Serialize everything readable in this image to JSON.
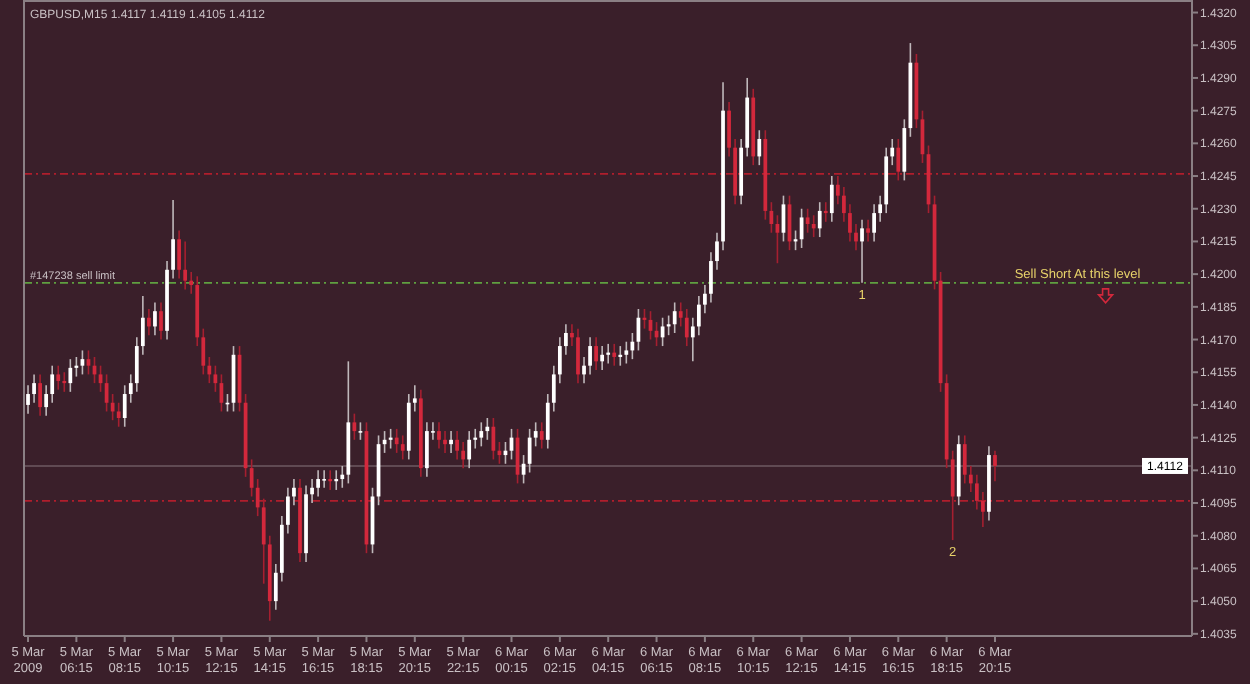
{
  "chart_data": {
    "type": "candlestick",
    "title": "GBPUSD,M15  1.4117 1.4119 1.4105 1.4112",
    "x": [
      "2009-03-05T04:15",
      "2009-03-05T04:30",
      "2009-03-05T04:45",
      "2009-03-05T05:00",
      "2009-03-05T05:15",
      "2009-03-05T05:30",
      "2009-03-05T05:45",
      "2009-03-05T06:00",
      "2009-03-05T06:15",
      "2009-03-05T06:30",
      "2009-03-05T06:45",
      "2009-03-05T07:00",
      "2009-03-05T07:15",
      "2009-03-05T07:30",
      "2009-03-05T07:45",
      "2009-03-05T08:00",
      "2009-03-05T08:15",
      "2009-03-05T08:30",
      "2009-03-05T08:45",
      "2009-03-05T09:00",
      "2009-03-05T09:15",
      "2009-03-05T09:30",
      "2009-03-05T09:45",
      "2009-03-05T10:00",
      "2009-03-05T10:15",
      "2009-03-05T10:30",
      "2009-03-05T10:45",
      "2009-03-05T11:00",
      "2009-03-05T11:15",
      "2009-03-05T11:30",
      "2009-03-05T11:45",
      "2009-03-05T12:00",
      "2009-03-05T12:15",
      "2009-03-05T12:30",
      "2009-03-05T12:45",
      "2009-03-05T13:00",
      "2009-03-05T13:15",
      "2009-03-05T13:30",
      "2009-03-05T13:45",
      "2009-03-05T14:00",
      "2009-03-05T14:15",
      "2009-03-05T14:30",
      "2009-03-05T14:45",
      "2009-03-05T15:00",
      "2009-03-05T15:15",
      "2009-03-05T15:30",
      "2009-03-05T15:45",
      "2009-03-05T16:00",
      "2009-03-05T16:15",
      "2009-03-05T16:30",
      "2009-03-05T16:45",
      "2009-03-05T17:00",
      "2009-03-05T17:15",
      "2009-03-05T17:30",
      "2009-03-05T17:45",
      "2009-03-05T18:00",
      "2009-03-05T18:15",
      "2009-03-05T18:30",
      "2009-03-05T18:45",
      "2009-03-05T19:00",
      "2009-03-05T19:15",
      "2009-03-05T19:30",
      "2009-03-05T19:45",
      "2009-03-05T20:00",
      "2009-03-05T20:15",
      "2009-03-05T20:30",
      "2009-03-05T20:45",
      "2009-03-05T21:00",
      "2009-03-05T21:15",
      "2009-03-05T21:30",
      "2009-03-05T21:45",
      "2009-03-05T22:00",
      "2009-03-05T22:15",
      "2009-03-05T22:30",
      "2009-03-05T22:45",
      "2009-03-05T23:00",
      "2009-03-05T23:15",
      "2009-03-05T23:30",
      "2009-03-05T23:45",
      "2009-03-06T00:00",
      "2009-03-06T00:15",
      "2009-03-06T00:30",
      "2009-03-06T00:45",
      "2009-03-06T01:00",
      "2009-03-06T01:15",
      "2009-03-06T01:30",
      "2009-03-06T01:45",
      "2009-03-06T02:00",
      "2009-03-06T02:15",
      "2009-03-06T02:30",
      "2009-03-06T02:45",
      "2009-03-06T03:00",
      "2009-03-06T03:15",
      "2009-03-06T03:30",
      "2009-03-06T03:45",
      "2009-03-06T04:00",
      "2009-03-06T04:15",
      "2009-03-06T04:30",
      "2009-03-06T04:45",
      "2009-03-06T05:00",
      "2009-03-06T05:15",
      "2009-03-06T05:30",
      "2009-03-06T05:45",
      "2009-03-06T06:00",
      "2009-03-06T06:15",
      "2009-03-06T06:30",
      "2009-03-06T06:45",
      "2009-03-06T07:00",
      "2009-03-06T07:15",
      "2009-03-06T07:30",
      "2009-03-06T07:45",
      "2009-03-06T08:00",
      "2009-03-06T08:15",
      "2009-03-06T08:30",
      "2009-03-06T08:45",
      "2009-03-06T09:00",
      "2009-03-06T09:15",
      "2009-03-06T09:30",
      "2009-03-06T09:45",
      "2009-03-06T10:00",
      "2009-03-06T10:15",
      "2009-03-06T10:30",
      "2009-03-06T10:45",
      "2009-03-06T11:00",
      "2009-03-06T11:15",
      "2009-03-06T11:30",
      "2009-03-06T11:45",
      "2009-03-06T12:00",
      "2009-03-06T12:15",
      "2009-03-06T12:30",
      "2009-03-06T12:45",
      "2009-03-06T13:00",
      "2009-03-06T13:15",
      "2009-03-06T13:30",
      "2009-03-06T13:45",
      "2009-03-06T14:00",
      "2009-03-06T14:15",
      "2009-03-06T14:30",
      "2009-03-06T14:45",
      "2009-03-06T15:00",
      "2009-03-06T15:15",
      "2009-03-06T15:30",
      "2009-03-06T15:45",
      "2009-03-06T16:00",
      "2009-03-06T16:15",
      "2009-03-06T16:30",
      "2009-03-06T16:45",
      "2009-03-06T17:00",
      "2009-03-06T17:15",
      "2009-03-06T17:30",
      "2009-03-06T17:45",
      "2009-03-06T18:00",
      "2009-03-06T18:15",
      "2009-03-06T18:30",
      "2009-03-06T18:45",
      "2009-03-06T19:00",
      "2009-03-06T19:15",
      "2009-03-06T19:30",
      "2009-03-06T19:45",
      "2009-03-06T20:00",
      "2009-03-06T20:15"
    ],
    "ohlc": [
      [
        1.414,
        1.4149,
        1.4136,
        1.4145
      ],
      [
        1.4145,
        1.4154,
        1.4141,
        1.415
      ],
      [
        1.415,
        1.4154,
        1.4135,
        1.4139
      ],
      [
        1.4139,
        1.4149,
        1.4135,
        1.4145
      ],
      [
        1.4145,
        1.4158,
        1.4141,
        1.4154
      ],
      [
        1.4154,
        1.4158,
        1.4147,
        1.4151
      ],
      [
        1.4151,
        1.4155,
        1.4146,
        1.415
      ],
      [
        1.415,
        1.4161,
        1.4146,
        1.4157
      ],
      [
        1.4157,
        1.4162,
        1.4153,
        1.4158
      ],
      [
        1.4158,
        1.4165,
        1.4154,
        1.4161
      ],
      [
        1.4161,
        1.4165,
        1.4154,
        1.4158
      ],
      [
        1.4158,
        1.4162,
        1.415,
        1.4154
      ],
      [
        1.4154,
        1.4158,
        1.4146,
        1.415
      ],
      [
        1.415,
        1.4154,
        1.4137,
        1.4141
      ],
      [
        1.4141,
        1.4145,
        1.4133,
        1.4137
      ],
      [
        1.4137,
        1.4141,
        1.413,
        1.4134
      ],
      [
        1.4134,
        1.4149,
        1.413,
        1.4145
      ],
      [
        1.4145,
        1.4154,
        1.4141,
        1.415
      ],
      [
        1.415,
        1.4171,
        1.4146,
        1.4167
      ],
      [
        1.4167,
        1.419,
        1.4163,
        1.418
      ],
      [
        1.418,
        1.4184,
        1.4172,
        1.4176
      ],
      [
        1.4176,
        1.4187,
        1.4172,
        1.4183
      ],
      [
        1.4183,
        1.4187,
        1.417,
        1.4174
      ],
      [
        1.4174,
        1.4206,
        1.417,
        1.4202
      ],
      [
        1.4202,
        1.4234,
        1.4198,
        1.4216
      ],
      [
        1.4216,
        1.422,
        1.4198,
        1.4202
      ],
      [
        1.4202,
        1.4215,
        1.4193,
        1.4197
      ],
      [
        1.4197,
        1.4201,
        1.4191,
        1.4195
      ],
      [
        1.4195,
        1.4199,
        1.4167,
        1.4171
      ],
      [
        1.4171,
        1.4175,
        1.4154,
        1.4158
      ],
      [
        1.4158,
        1.4162,
        1.415,
        1.4154
      ],
      [
        1.4154,
        1.4158,
        1.4146,
        1.415
      ],
      [
        1.415,
        1.4154,
        1.4137,
        1.4141
      ],
      [
        1.4141,
        1.4145,
        1.4137,
        1.4141
      ],
      [
        1.4141,
        1.4167,
        1.4137,
        1.4163
      ],
      [
        1.4163,
        1.4167,
        1.4137,
        1.4141
      ],
      [
        1.4141,
        1.4145,
        1.4107,
        1.4111
      ],
      [
        1.4111,
        1.4115,
        1.4098,
        1.4102
      ],
      [
        1.4102,
        1.4106,
        1.4089,
        1.4093
      ],
      [
        1.4093,
        1.4097,
        1.4058,
        1.4076
      ],
      [
        1.4076,
        1.408,
        1.4041,
        1.405
      ],
      [
        1.405,
        1.4067,
        1.4046,
        1.4063
      ],
      [
        1.4063,
        1.4089,
        1.4059,
        1.4085
      ],
      [
        1.4085,
        1.4102,
        1.4081,
        1.4098
      ],
      [
        1.4098,
        1.4106,
        1.4094,
        1.4102
      ],
      [
        1.4102,
        1.4106,
        1.4068,
        1.4072
      ],
      [
        1.4072,
        1.4103,
        1.4068,
        1.4099
      ],
      [
        1.4099,
        1.4106,
        1.4095,
        1.4102
      ],
      [
        1.4102,
        1.411,
        1.4098,
        1.4106
      ],
      [
        1.4106,
        1.411,
        1.4102,
        1.4106
      ],
      [
        1.4106,
        1.411,
        1.4101,
        1.4105
      ],
      [
        1.4105,
        1.411,
        1.4101,
        1.4106
      ],
      [
        1.4106,
        1.4112,
        1.4102,
        1.4108
      ],
      [
        1.4108,
        1.416,
        1.4104,
        1.4132
      ],
      [
        1.4132,
        1.4136,
        1.4124,
        1.4128
      ],
      [
        1.4128,
        1.4132,
        1.4124,
        1.4128
      ],
      [
        1.4128,
        1.4132,
        1.4072,
        1.4076
      ],
      [
        1.4076,
        1.4102,
        1.4072,
        1.4098
      ],
      [
        1.4098,
        1.4126,
        1.4094,
        1.4122
      ],
      [
        1.4122,
        1.4128,
        1.4118,
        1.4124
      ],
      [
        1.4124,
        1.4129,
        1.412,
        1.4125
      ],
      [
        1.4125,
        1.4129,
        1.4118,
        1.4122
      ],
      [
        1.4122,
        1.4126,
        1.4115,
        1.4119
      ],
      [
        1.4119,
        1.4145,
        1.4115,
        1.4141
      ],
      [
        1.4141,
        1.4149,
        1.4137,
        1.4143
      ],
      [
        1.4143,
        1.4147,
        1.4107,
        1.4111
      ],
      [
        1.4111,
        1.4132,
        1.4107,
        1.4128
      ],
      [
        1.4128,
        1.4132,
        1.4124,
        1.4128
      ],
      [
        1.4128,
        1.4132,
        1.412,
        1.4124
      ],
      [
        1.4124,
        1.4128,
        1.4118,
        1.4122
      ],
      [
        1.4122,
        1.4128,
        1.4118,
        1.4124
      ],
      [
        1.4124,
        1.4128,
        1.4115,
        1.4119
      ],
      [
        1.4119,
        1.4123,
        1.4111,
        1.4115
      ],
      [
        1.4115,
        1.4128,
        1.4111,
        1.4124
      ],
      [
        1.4124,
        1.4129,
        1.412,
        1.4125
      ],
      [
        1.4125,
        1.4132,
        1.4121,
        1.4128
      ],
      [
        1.4128,
        1.4134,
        1.4124,
        1.413
      ],
      [
        1.413,
        1.4134,
        1.4115,
        1.4119
      ],
      [
        1.4119,
        1.4123,
        1.4113,
        1.4117
      ],
      [
        1.4117,
        1.4123,
        1.4113,
        1.4119
      ],
      [
        1.4119,
        1.4129,
        1.4115,
        1.4125
      ],
      [
        1.4125,
        1.4129,
        1.4104,
        1.4108
      ],
      [
        1.4108,
        1.4117,
        1.4104,
        1.4113
      ],
      [
        1.4113,
        1.4129,
        1.4109,
        1.4125
      ],
      [
        1.4125,
        1.4132,
        1.4121,
        1.4128
      ],
      [
        1.4128,
        1.4132,
        1.412,
        1.4124
      ],
      [
        1.4124,
        1.4145,
        1.412,
        1.4141
      ],
      [
        1.4141,
        1.4158,
        1.4137,
        1.4154
      ],
      [
        1.4154,
        1.4171,
        1.415,
        1.4167
      ],
      [
        1.4167,
        1.4177,
        1.4163,
        1.4173
      ],
      [
        1.4173,
        1.4177,
        1.4167,
        1.4171
      ],
      [
        1.4171,
        1.4175,
        1.415,
        1.4154
      ],
      [
        1.4154,
        1.4162,
        1.415,
        1.4158
      ],
      [
        1.4158,
        1.4171,
        1.4154,
        1.4167
      ],
      [
        1.4167,
        1.4171,
        1.4156,
        1.416
      ],
      [
        1.416,
        1.4167,
        1.4156,
        1.4163
      ],
      [
        1.4163,
        1.4168,
        1.4159,
        1.4164
      ],
      [
        1.4164,
        1.4168,
        1.4158,
        1.4162
      ],
      [
        1.4162,
        1.4167,
        1.4158,
        1.4163
      ],
      [
        1.4163,
        1.4169,
        1.4159,
        1.4165
      ],
      [
        1.4165,
        1.4173,
        1.4161,
        1.4169
      ],
      [
        1.4169,
        1.4184,
        1.4165,
        1.418
      ],
      [
        1.418,
        1.4184,
        1.4175,
        1.4179
      ],
      [
        1.4179,
        1.4183,
        1.417,
        1.4174
      ],
      [
        1.4174,
        1.4178,
        1.4167,
        1.4171
      ],
      [
        1.4171,
        1.418,
        1.4167,
        1.4176
      ],
      [
        1.4176,
        1.4181,
        1.4172,
        1.4177
      ],
      [
        1.4177,
        1.4187,
        1.4173,
        1.4183
      ],
      [
        1.4183,
        1.4187,
        1.4176,
        1.418
      ],
      [
        1.418,
        1.4184,
        1.4167,
        1.4171
      ],
      [
        1.4171,
        1.418,
        1.416,
        1.4176
      ],
      [
        1.4176,
        1.419,
        1.4172,
        1.4186
      ],
      [
        1.4186,
        1.4195,
        1.4182,
        1.4191
      ],
      [
        1.4191,
        1.421,
        1.4187,
        1.4206
      ],
      [
        1.4206,
        1.4219,
        1.4202,
        1.4215
      ],
      [
        1.4215,
        1.4288,
        1.4211,
        1.4275
      ],
      [
        1.4275,
        1.4279,
        1.4254,
        1.4258
      ],
      [
        1.4258,
        1.4262,
        1.4232,
        1.4236
      ],
      [
        1.4236,
        1.4262,
        1.4232,
        1.4258
      ],
      [
        1.4258,
        1.429,
        1.4254,
        1.4281
      ],
      [
        1.4281,
        1.4285,
        1.425,
        1.4254
      ],
      [
        1.4254,
        1.4266,
        1.425,
        1.4262
      ],
      [
        1.4262,
        1.4266,
        1.4225,
        1.4229
      ],
      [
        1.4229,
        1.4233,
        1.4219,
        1.4223
      ],
      [
        1.4223,
        1.4227,
        1.4205,
        1.4219
      ],
      [
        1.4219,
        1.4236,
        1.4215,
        1.4232
      ],
      [
        1.4232,
        1.4236,
        1.4211,
        1.4215
      ],
      [
        1.4215,
        1.422,
        1.4211,
        1.4216
      ],
      [
        1.4216,
        1.423,
        1.4212,
        1.4226
      ],
      [
        1.4226,
        1.423,
        1.4219,
        1.4223
      ],
      [
        1.4223,
        1.4227,
        1.4217,
        1.4221
      ],
      [
        1.4221,
        1.4233,
        1.4217,
        1.4229
      ],
      [
        1.4229,
        1.4233,
        1.4224,
        1.4228
      ],
      [
        1.4228,
        1.4245,
        1.4224,
        1.4241
      ],
      [
        1.4241,
        1.4245,
        1.4232,
        1.4236
      ],
      [
        1.4236,
        1.424,
        1.4224,
        1.4228
      ],
      [
        1.4228,
        1.4232,
        1.4215,
        1.4219
      ],
      [
        1.4219,
        1.4223,
        1.4211,
        1.4215
      ],
      [
        1.4215,
        1.4225,
        1.4196,
        1.4221
      ],
      [
        1.4221,
        1.4225,
        1.4215,
        1.4219
      ],
      [
        1.4219,
        1.4232,
        1.4215,
        1.4228
      ],
      [
        1.4228,
        1.4236,
        1.4224,
        1.4232
      ],
      [
        1.4232,
        1.4258,
        1.4228,
        1.4254
      ],
      [
        1.4254,
        1.4262,
        1.425,
        1.4258
      ],
      [
        1.4258,
        1.4262,
        1.4243,
        1.4247
      ],
      [
        1.4247,
        1.4271,
        1.4243,
        1.4267
      ],
      [
        1.4267,
        1.4306,
        1.4263,
        1.4297
      ],
      [
        1.4297,
        1.4301,
        1.4267,
        1.4271
      ],
      [
        1.4271,
        1.4275,
        1.4251,
        1.4255
      ],
      [
        1.4255,
        1.4259,
        1.4228,
        1.4232
      ],
      [
        1.4232,
        1.4236,
        1.4193,
        1.4197
      ],
      [
        1.4197,
        1.4201,
        1.4146,
        1.415
      ],
      [
        1.415,
        1.4154,
        1.4111,
        1.4115
      ],
      [
        1.4115,
        1.4119,
        1.4078,
        1.4098
      ],
      [
        1.4098,
        1.4126,
        1.4094,
        1.4122
      ],
      [
        1.4122,
        1.4126,
        1.4104,
        1.4108
      ],
      [
        1.4108,
        1.4112,
        1.41,
        1.4104
      ],
      [
        1.4104,
        1.4108,
        1.4092,
        1.4096
      ],
      [
        1.4096,
        1.41,
        1.4084,
        1.4091
      ],
      [
        1.4091,
        1.4121,
        1.4087,
        1.4117
      ],
      [
        1.4117,
        1.4119,
        1.4105,
        1.4112
      ]
    ],
    "xlim": [
      "2009-03-05T04:05",
      "2009-03-07T04:24"
    ],
    "xticks": [
      {
        "value": "2009-03-05T04:15",
        "label": "5 Mar 2009"
      },
      {
        "value": "2009-03-05T06:15",
        "label": "5 Mar 06:15"
      },
      {
        "value": "2009-03-05T08:15",
        "label": "5 Mar 08:15"
      },
      {
        "value": "2009-03-05T10:15",
        "label": "5 Mar 10:15"
      },
      {
        "value": "2009-03-05T12:15",
        "label": "5 Mar 12:15"
      },
      {
        "value": "2009-03-05T14:15",
        "label": "5 Mar 14:15"
      },
      {
        "value": "2009-03-05T16:15",
        "label": "5 Mar 16:15"
      },
      {
        "value": "2009-03-05T18:15",
        "label": "5 Mar 18:15"
      },
      {
        "value": "2009-03-05T20:15",
        "label": "5 Mar 20:15"
      },
      {
        "value": "2009-03-05T22:15",
        "label": "5 Mar 22:15"
      },
      {
        "value": "2009-03-06T00:15",
        "label": "6 Mar 00:15"
      },
      {
        "value": "2009-03-06T02:15",
        "label": "6 Mar 02:15"
      },
      {
        "value": "2009-03-06T04:15",
        "label": "6 Mar 04:15"
      },
      {
        "value": "2009-03-06T06:15",
        "label": "6 Mar 06:15"
      },
      {
        "value": "2009-03-06T08:15",
        "label": "6 Mar 08:15"
      },
      {
        "value": "2009-03-06T10:15",
        "label": "6 Mar 10:15"
      },
      {
        "value": "2009-03-06T12:15",
        "label": "6 Mar 12:15"
      },
      {
        "value": "2009-03-06T14:15",
        "label": "6 Mar 14:15"
      },
      {
        "value": "2009-03-06T16:15",
        "label": "6 Mar 16:15"
      },
      {
        "value": "2009-03-06T18:15",
        "label": "6 Mar 18:15"
      },
      {
        "value": "2009-03-06T20:15",
        "label": "6 Mar 20:15"
      }
    ],
    "ylim": [
      1.4034,
      1.4323
    ],
    "yticks": [
      {
        "value": 1.4035,
        "label": "1.4035"
      },
      {
        "value": 1.405,
        "label": "1.4050"
      },
      {
        "value": 1.4065,
        "label": "1.4065"
      },
      {
        "value": 1.408,
        "label": "1.4080"
      },
      {
        "value": 1.4095,
        "label": "1.4095"
      },
      {
        "value": 1.411,
        "label": "1.4110"
      },
      {
        "value": 1.4125,
        "label": "1.4125"
      },
      {
        "value": 1.414,
        "label": "1.4140"
      },
      {
        "value": 1.4155,
        "label": "1.4155"
      },
      {
        "value": 1.417,
        "label": "1.4170"
      },
      {
        "value": 1.4185,
        "label": "1.4185"
      },
      {
        "value": 1.42,
        "label": "1.4200"
      },
      {
        "value": 1.4215,
        "label": "1.4215"
      },
      {
        "value": 1.423,
        "label": "1.4230"
      },
      {
        "value": 1.4245,
        "label": "1.4245"
      },
      {
        "value": 1.426,
        "label": "1.4260"
      },
      {
        "value": 1.4275,
        "label": "1.4275"
      },
      {
        "value": 1.429,
        "label": "1.4290"
      },
      {
        "value": 1.4305,
        "label": "1.4305"
      },
      {
        "value": 1.432,
        "label": "1.4320"
      }
    ],
    "ref_lines": [
      {
        "axis": "y",
        "value": 1.4246,
        "color": "#b01e2c",
        "line_style": "dashed"
      },
      {
        "axis": "y",
        "value": 1.4096,
        "color": "#b01e2c",
        "line_style": "dashed"
      },
      {
        "axis": "y",
        "value": 1.4196,
        "label": "#147238 sell limit",
        "color": "#5fa040",
        "line_style": "dashed"
      },
      {
        "axis": "y",
        "value": 1.4112,
        "label": "1.4112",
        "color": "#6e5a62",
        "line_style": "solid"
      }
    ],
    "annotations": [
      {
        "text": "Sell Short At this level",
        "x": "2009-03-06T23:40",
        "y": 1.4196
      },
      {
        "text": "1",
        "x": "2009-03-06T14:45",
        "y": 1.4196
      },
      {
        "text": "2",
        "x": "2009-03-06T18:30",
        "y": 1.4078
      }
    ],
    "grid": false
  }
}
